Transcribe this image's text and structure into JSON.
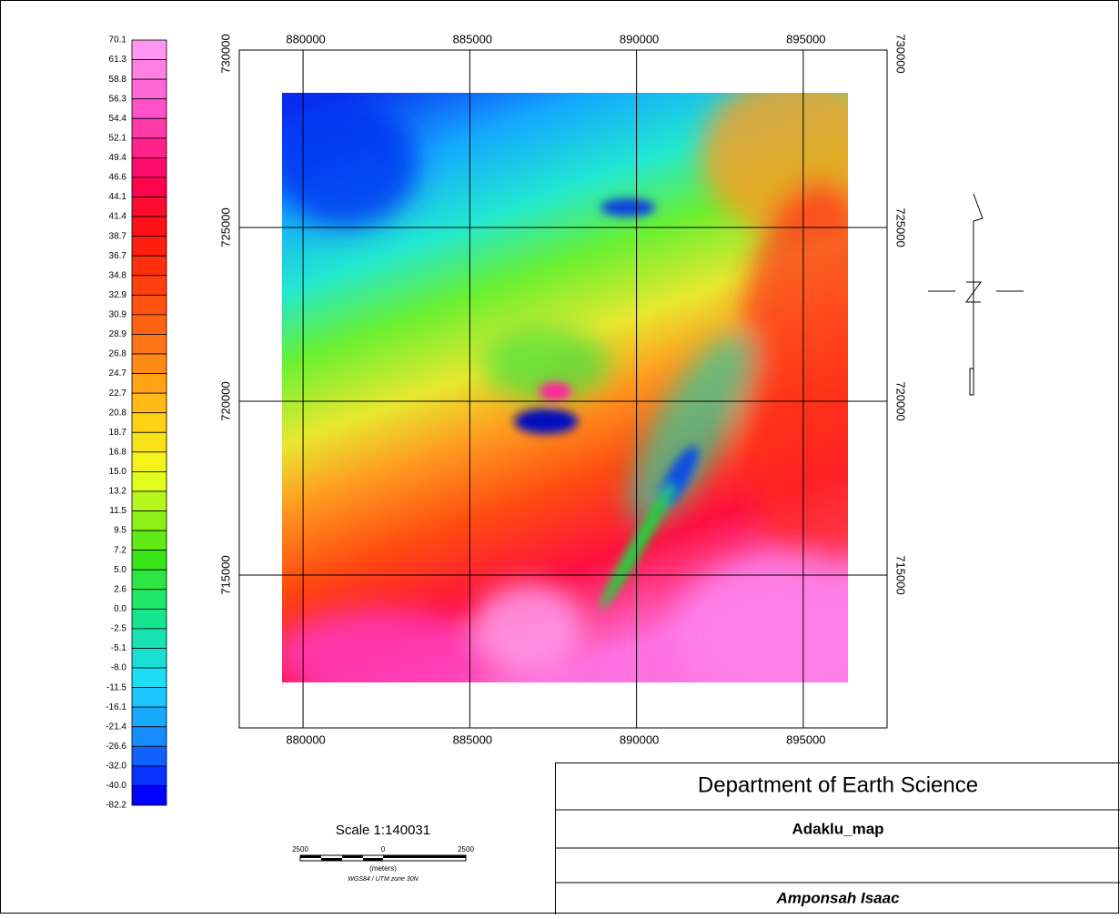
{
  "map": {
    "colorbar": {
      "labels": [
        "70.1",
        "61.3",
        "58.8",
        "56.3",
        "54.4",
        "52.1",
        "49.4",
        "46.6",
        "44.1",
        "41.4",
        "38.7",
        "36.7",
        "34.8",
        "32.9",
        "30.9",
        "28.9",
        "26.8",
        "24.7",
        "22.7",
        "20.8",
        "18.7",
        "16.8",
        "15.0",
        "13.2",
        "11.5",
        "9.5",
        "7.2",
        "5.0",
        "2.6",
        "0.0",
        "-2.5",
        "-5.1",
        "-8.0",
        "-11.5",
        "-16.1",
        "-21.4",
        "-26.6",
        "-32.0",
        "-40.0",
        "-82.2"
      ]
    },
    "xlim": [
      878087,
      897514
    ],
    "ylim": [
      710602,
      730105
    ],
    "xticks": [
      880000,
      885000,
      890000,
      895000
    ],
    "yticks": [
      730000,
      725000,
      720000,
      715000
    ],
    "scale": {
      "title": "Scale 1:140031",
      "labels": [
        "2500",
        "0",
        "2500"
      ],
      "unit": "(meters)",
      "projection": "WGS84 / UTM zone 30N"
    },
    "title_block": {
      "organization": "Department of Earth Science",
      "map_name": "Adaklu_map",
      "author": "Amponsah Isaac"
    }
  }
}
